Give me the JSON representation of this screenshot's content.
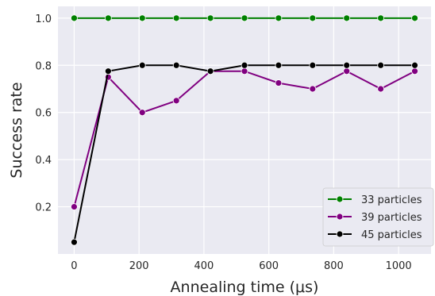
{
  "chart_data": {
    "type": "line",
    "title": "",
    "xlabel": "Annealing time (μs)",
    "ylabel": "Success rate",
    "xlim": [
      -50,
      1100
    ],
    "ylim": [
      0.0,
      1.05
    ],
    "xticks": [
      0,
      200,
      400,
      600,
      800,
      1000
    ],
    "yticks": [
      0.2,
      0.4,
      0.6,
      0.8,
      1.0
    ],
    "xtick_labels": [
      "0",
      "200",
      "400",
      "600",
      "800",
      "1000"
    ],
    "ytick_labels": [
      "0.2",
      "0.4",
      "0.6",
      "0.8",
      "1.0"
    ],
    "grid": true,
    "background": "#eaeaf2",
    "legend_position": "lower-right",
    "x": [
      0,
      105,
      210,
      315,
      420,
      525,
      630,
      735,
      840,
      945,
      1050
    ],
    "series": [
      {
        "name": "33 particles",
        "color": "#008000",
        "values": [
          1.0,
          1.0,
          1.0,
          1.0,
          1.0,
          1.0,
          1.0,
          1.0,
          1.0,
          1.0,
          1.0
        ]
      },
      {
        "name": "39 particles",
        "color": "#800080",
        "values": [
          0.2,
          0.75,
          0.6,
          0.65,
          0.775,
          0.775,
          0.725,
          0.7,
          0.775,
          0.7,
          0.775
        ]
      },
      {
        "name": "45 particles",
        "color": "#000000",
        "values": [
          0.05,
          0.775,
          0.8,
          0.8,
          0.775,
          0.8,
          0.8,
          0.8,
          0.8,
          0.8,
          0.8
        ]
      }
    ]
  }
}
